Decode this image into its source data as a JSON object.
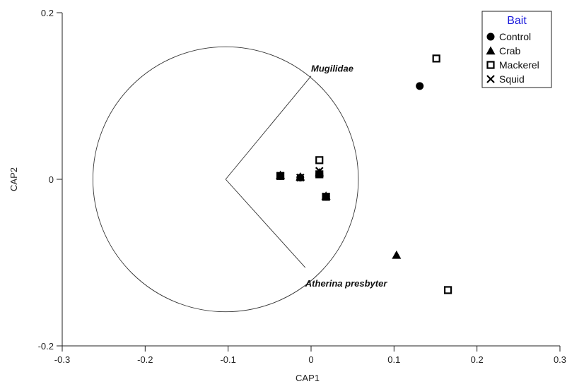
{
  "chart_data": {
    "type": "scatter",
    "xlabel": "CAP1",
    "ylabel": "CAP2",
    "xlim": [
      -0.3,
      0.3
    ],
    "ylim": [
      -0.2,
      0.2
    ],
    "x_ticks": [
      -0.3,
      -0.2,
      -0.1,
      0,
      0.1,
      0.2,
      0.3
    ],
    "x_tick_labels": [
      "-0.3",
      "-0.2",
      "-0.1",
      "0",
      "0.1",
      "0.2",
      "0.3"
    ],
    "y_ticks": [
      -0.2,
      0,
      0.2
    ],
    "y_tick_labels": [
      "-0.2",
      "0",
      "0.2"
    ],
    "legend": {
      "title": "Bait",
      "position": "top-right"
    },
    "series": [
      {
        "name": "Control",
        "marker": "circle",
        "points": [
          {
            "x": -0.037,
            "y": 0.004
          },
          {
            "x": -0.013,
            "y": 0.002
          },
          {
            "x": 0.01,
            "y": 0.006
          },
          {
            "x": 0.018,
            "y": -0.021
          },
          {
            "x": 0.131,
            "y": 0.112
          }
        ]
      },
      {
        "name": "Crab",
        "marker": "triangle",
        "points": [
          {
            "x": -0.037,
            "y": 0.005
          },
          {
            "x": -0.013,
            "y": 0.003
          },
          {
            "x": 0.01,
            "y": 0.008
          },
          {
            "x": 0.018,
            "y": -0.02
          },
          {
            "x": 0.103,
            "y": -0.091
          }
        ]
      },
      {
        "name": "Mackerel",
        "marker": "square",
        "points": [
          {
            "x": -0.037,
            "y": 0.004
          },
          {
            "x": 0.01,
            "y": 0.023
          },
          {
            "x": 0.01,
            "y": 0.006
          },
          {
            "x": 0.018,
            "y": -0.021
          },
          {
            "x": 0.151,
            "y": 0.145
          },
          {
            "x": 0.165,
            "y": -0.133
          }
        ]
      },
      {
        "name": "Squid",
        "marker": "cross",
        "points": [
          {
            "x": -0.037,
            "y": 0.004
          },
          {
            "x": -0.013,
            "y": 0.002
          },
          {
            "x": 0.01,
            "y": 0.01
          },
          {
            "x": 0.018,
            "y": -0.021
          }
        ]
      }
    ],
    "vectors": [
      {
        "label": "Mugilidae",
        "x": 0.0,
        "y": 0.124
      },
      {
        "label": "Atherina presbyter",
        "x": -0.007,
        "y": -0.106
      }
    ],
    "correlation_circle": {
      "center": [
        -0.103,
        0
      ],
      "radius": 0.16
    }
  }
}
